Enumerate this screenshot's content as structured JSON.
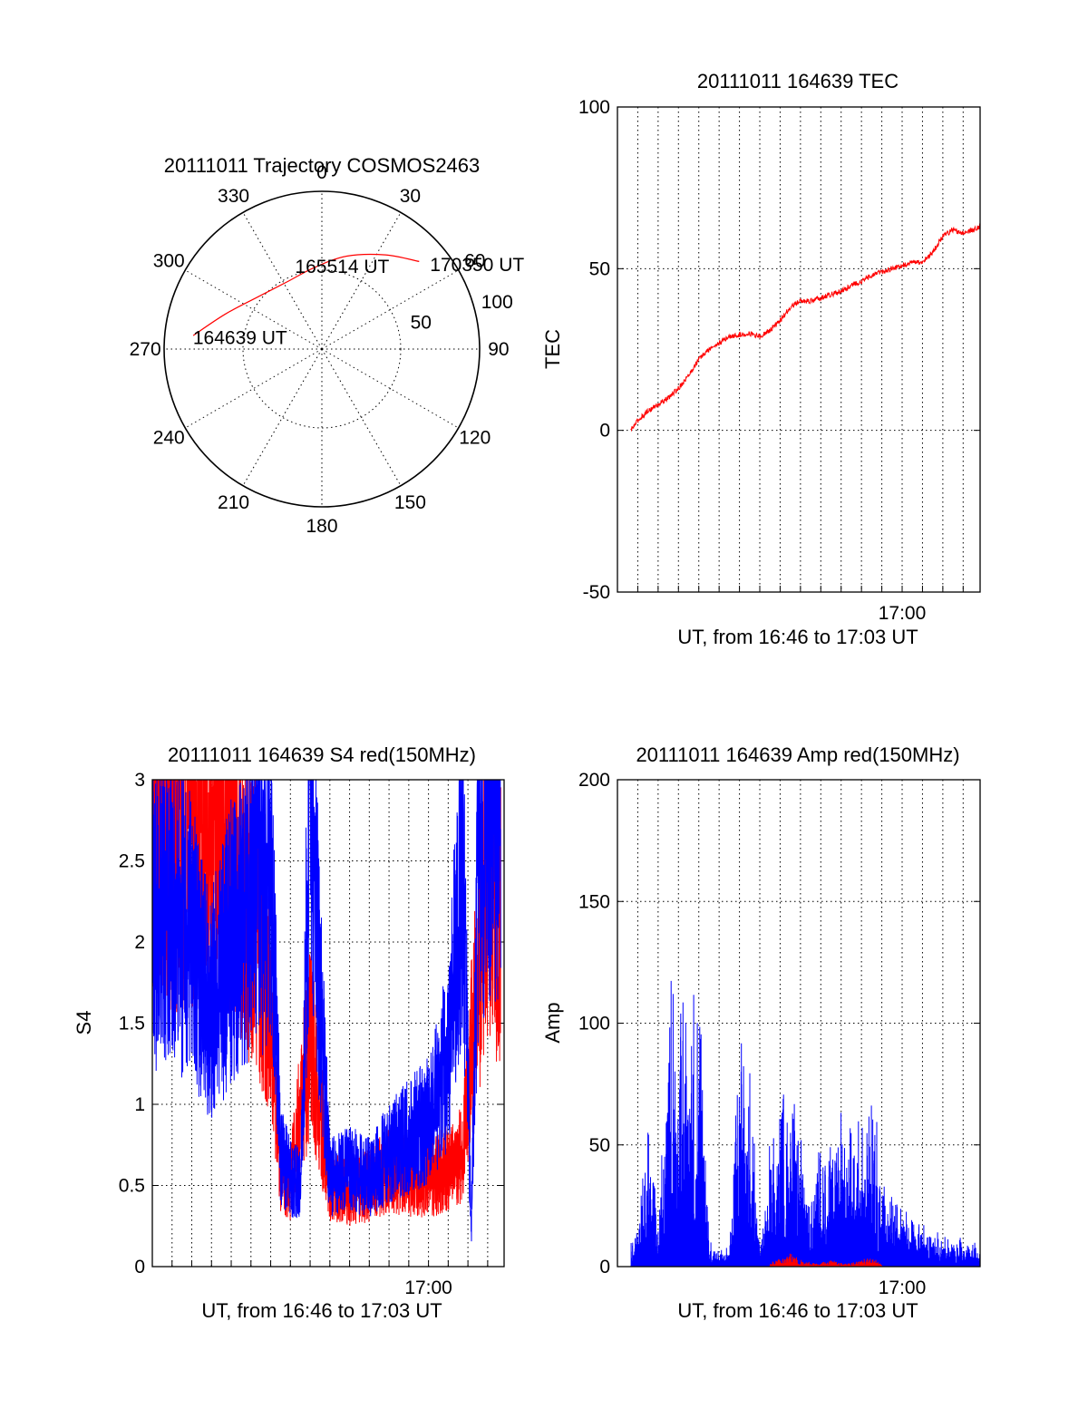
{
  "chart_data": [
    {
      "type": "polar",
      "title": "20111011 Trajectory COSMOS2463",
      "azimuth_labels": [
        "0",
        "30",
        "60",
        "90",
        "120",
        "150",
        "180",
        "210",
        "240",
        "270",
        "300",
        "330"
      ],
      "radial_labels": [
        "50",
        "100"
      ],
      "series": [
        {
          "color": "#ff0000",
          "points": [
            {
              "az": 276,
              "r": 82
            },
            {
              "az": 290,
              "r": 65
            },
            {
              "az": 310,
              "r": 52
            },
            {
              "az": 333,
              "r": 48
            },
            {
              "az": 355,
              "r": 52
            },
            {
              "az": 15,
              "r": 61
            },
            {
              "az": 34,
              "r": 72
            },
            {
              "az": 48,
              "r": 83
            }
          ]
        }
      ],
      "annotations": [
        {
          "text": "164639 UT",
          "az": 275,
          "r": 82
        },
        {
          "text": "165514 UT",
          "az": 342,
          "r": 55
        },
        {
          "text": "170350 UT",
          "az": 52,
          "r": 87
        }
      ]
    },
    {
      "type": "line",
      "title": "20111011 164639 TEC",
      "ylabel": "TEC",
      "xlabel": "UT, from 16:46 to 17:03 UT",
      "ylim": [
        -50,
        100
      ],
      "yticks": [
        "-50",
        "0",
        "50",
        "100"
      ],
      "xlim": [
        "16:46:00",
        "17:03:50"
      ],
      "xtick_labels": [
        {
          "value": "17:00:00",
          "label": "17:00"
        }
      ],
      "grid": true,
      "series": [
        {
          "color": "#ff0000",
          "x": [
            "16:46:39",
            "16:47:00",
            "16:47:30",
            "16:48:00",
            "16:48:30",
            "16:49:00",
            "16:49:30",
            "16:50:00",
            "16:50:30",
            "16:51:00",
            "16:51:30",
            "16:52:00",
            "16:52:30",
            "16:53:00",
            "16:53:30",
            "16:54:00",
            "16:54:30",
            "16:55:00",
            "16:55:30",
            "16:56:00",
            "16:56:30",
            "16:57:00",
            "16:57:30",
            "16:58:00",
            "16:58:30",
            "16:59:00",
            "16:59:30",
            "17:00:00",
            "17:00:30",
            "17:01:00",
            "17:01:30",
            "17:02:00",
            "17:02:30",
            "17:03:00",
            "17:03:30",
            "17:03:50"
          ],
          "values": [
            0,
            3,
            6,
            8,
            10,
            13,
            17,
            22,
            25,
            27,
            29,
            29.5,
            30,
            29,
            31,
            34,
            38,
            40,
            40,
            41,
            42,
            43,
            45,
            46,
            48,
            49,
            50,
            51,
            52,
            52,
            55,
            60,
            62,
            61,
            62,
            63
          ]
        }
      ]
    },
    {
      "type": "line",
      "title": "20111011 164639 S4 red(150MHz)",
      "ylabel": "S4",
      "xlabel": "UT, from 16:46 to 17:03 UT",
      "ylim": [
        0,
        3
      ],
      "yticks": [
        "0",
        "0.5",
        "1",
        "1.5",
        "2",
        "2.5",
        "3"
      ],
      "xlim": [
        "16:46:00",
        "17:03:50"
      ],
      "xtick_labels": [
        {
          "value": "17:00:00",
          "label": "17:00"
        }
      ],
      "grid": true,
      "series": [
        {
          "color": "#ff0000",
          "x": [
            "16:46:00",
            "16:47:00",
            "16:48:00",
            "16:49:00",
            "16:50:00",
            "16:51:00",
            "16:52:00",
            "16:52:30",
            "16:53:00",
            "16:54:00",
            "16:55:00",
            "16:56:00",
            "16:57:00",
            "16:58:00",
            "16:59:00",
            "17:00:00",
            "17:01:00",
            "17:01:45",
            "17:02:30",
            "17:03:00",
            "17:03:40"
          ],
          "values": [
            3.0,
            2.8,
            2.9,
            3.0,
            2.6,
            2.2,
            1.7,
            0.6,
            0.5,
            1.4,
            0.5,
            0.45,
            0.5,
            0.6,
            0.55,
            0.55,
            0.6,
            0.7,
            1.8,
            2.6,
            2.1
          ]
        },
        {
          "color": "#0000ff",
          "x": [
            "16:46:00",
            "16:47:00",
            "16:48:00",
            "16:49:00",
            "16:50:00",
            "16:51:00",
            "16:52:00",
            "16:52:30",
            "16:53:00",
            "16:53:30",
            "16:54:00",
            "16:55:00",
            "16:56:00",
            "16:57:00",
            "16:58:00",
            "16:59:00",
            "17:00:00",
            "17:01:00",
            "17:01:45",
            "17:02:10",
            "17:02:30",
            "17:03:00",
            "17:03:40"
          ],
          "values": [
            2.1,
            2.2,
            2.0,
            1.6,
            2.0,
            2.3,
            2.4,
            0.7,
            0.55,
            0.5,
            2.9,
            0.55,
            0.6,
            0.55,
            0.7,
            0.8,
            0.9,
            1.3,
            2.6,
            0.2,
            2.4,
            2.9,
            3.0
          ]
        }
      ]
    },
    {
      "type": "line",
      "title": "20111011 164639 Amp red(150MHz)",
      "ylabel": "Amp",
      "xlabel": "UT, from 16:46 to 17:03 UT",
      "ylim": [
        0,
        200
      ],
      "yticks": [
        "0",
        "50",
        "100",
        "150",
        "200"
      ],
      "xlim": [
        "16:46:00",
        "17:03:50"
      ],
      "xtick_labels": [
        {
          "value": "17:00:00",
          "label": "17:00"
        }
      ],
      "grid": true,
      "series": [
        {
          "color": "#0000ff",
          "x": [
            "16:46:40",
            "16:47:00",
            "16:47:30",
            "16:48:00",
            "16:48:30",
            "16:49:00",
            "16:49:30",
            "16:50:00",
            "16:50:30",
            "16:51:00",
            "16:51:30",
            "16:52:00",
            "16:52:30",
            "16:53:00",
            "16:53:30",
            "16:54:00",
            "16:54:30",
            "16:55:00",
            "16:55:30",
            "16:56:00",
            "16:56:30",
            "16:57:00",
            "16:57:30",
            "16:58:00",
            "16:58:30",
            "16:59:00",
            "16:59:30",
            "17:00:00",
            "17:00:30",
            "17:01:00",
            "17:01:30",
            "17:02:00",
            "17:02:30",
            "17:03:00",
            "17:03:30",
            "17:03:50"
          ],
          "values": [
            8,
            10,
            40,
            12,
            70,
            78,
            80,
            82,
            8,
            5,
            6,
            65,
            60,
            5,
            35,
            50,
            55,
            40,
            15,
            38,
            45,
            40,
            42,
            38,
            48,
            25,
            20,
            18,
            14,
            12,
            10,
            9,
            8,
            7,
            7,
            6
          ]
        },
        {
          "color": "#ff0000",
          "x": [
            "16:53:30",
            "16:54:00",
            "16:54:30",
            "16:55:00",
            "16:55:30",
            "16:56:00",
            "16:56:30",
            "16:57:00",
            "16:57:30",
            "16:58:00",
            "16:58:30",
            "16:59:00"
          ],
          "values": [
            1,
            3,
            4,
            2,
            1,
            1,
            2,
            1,
            1,
            2,
            3,
            1
          ]
        }
      ]
    }
  ]
}
